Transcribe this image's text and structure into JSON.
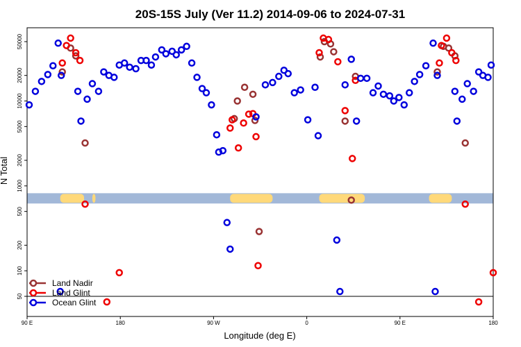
{
  "chart_data": {
    "type": "scatter",
    "title": "20S-15S July (Ver 11.2)   2014-09-06 to 2024-07-31",
    "xlabel": "Longitude (deg E)",
    "ylabel": "N Total",
    "y_scale": "log",
    "ylim": [
      40,
      75000
    ],
    "x_ticks": [
      {
        "label": "90 E",
        "lon": 90
      },
      {
        "label": "180",
        "lon": 180
      },
      {
        "label": "90 W",
        "lon": 270
      },
      {
        "label": "0",
        "lon": 360
      },
      {
        "label": "90 E",
        "lon": 450
      },
      {
        "label": "180",
        "lon": 540
      }
    ],
    "xlim": [
      90,
      540
    ],
    "y_ticks": [
      50,
      100,
      200,
      500,
      1000,
      2000,
      5000,
      10000,
      20000,
      50000
    ],
    "reference_line_y": 50,
    "land_ocean_strip": {
      "ocean_color": "#a2b8d8",
      "land_color": "#ffd97a",
      "land_ranges_lon": [
        [
          122,
          145
        ],
        [
          153,
          156
        ],
        [
          286,
          327
        ],
        [
          372,
          416
        ],
        [
          478,
          500
        ]
      ]
    },
    "legend": {
      "position": "bottom-left",
      "entries": [
        {
          "label": "Land Nadir",
          "color": "#993333"
        },
        {
          "label": "Land Glint",
          "color": "#ee0000"
        },
        {
          "label": "Ocean Glint",
          "color": "#0000dd"
        }
      ]
    },
    "series": [
      {
        "name": "Land Nadir",
        "color": "#993333",
        "points": [
          [
            124,
            22000
          ],
          [
            132,
            42000
          ],
          [
            137,
            34000
          ],
          [
            146,
            3200
          ],
          [
            290,
            6200
          ],
          [
            293,
            10000
          ],
          [
            300,
            14500
          ],
          [
            308,
            12000
          ],
          [
            310,
            5900
          ],
          [
            314,
            290
          ],
          [
            373,
            33000
          ],
          [
            377,
            50000
          ],
          [
            383,
            47000
          ],
          [
            386,
            38000
          ],
          [
            397,
            5800
          ],
          [
            403,
            680
          ],
          [
            407,
            19500
          ],
          [
            486,
            22000
          ],
          [
            492,
            44000
          ],
          [
            497,
            42000
          ],
          [
            503,
            34000
          ],
          [
            513,
            3200
          ]
        ]
      },
      {
        "name": "Land Glint",
        "color": "#ee0000",
        "points": [
          [
            124,
            28000
          ],
          [
            128,
            45000
          ],
          [
            132,
            55000
          ],
          [
            137,
            37000
          ],
          [
            141,
            30000
          ],
          [
            146,
            610
          ],
          [
            179,
            95
          ],
          [
            167,
            43
          ],
          [
            286,
            4800
          ],
          [
            288,
            6000
          ],
          [
            294,
            2800
          ],
          [
            299,
            5500
          ],
          [
            304,
            7000
          ],
          [
            308,
            7100
          ],
          [
            311,
            3800
          ],
          [
            313,
            115
          ],
          [
            372,
            37000
          ],
          [
            376,
            55000
          ],
          [
            381,
            53000
          ],
          [
            390,
            29000
          ],
          [
            397,
            7700
          ],
          [
            404,
            2100
          ],
          [
            407,
            17500
          ],
          [
            488,
            28000
          ],
          [
            490,
            45000
          ],
          [
            495,
            55000
          ],
          [
            500,
            37000
          ],
          [
            504,
            30000
          ],
          [
            513,
            610
          ],
          [
            540,
            95
          ],
          [
            526,
            43
          ]
        ]
      },
      {
        "name": "Ocean Glint",
        "color": "#0000dd",
        "points": [
          [
            92,
            9000
          ],
          [
            98,
            13000
          ],
          [
            104,
            17000
          ],
          [
            110,
            20500
          ],
          [
            115,
            26000
          ],
          [
            120,
            48000
          ],
          [
            123,
            20000
          ],
          [
            139,
            13000
          ],
          [
            142,
            5800
          ],
          [
            148,
            10500
          ],
          [
            153,
            16000
          ],
          [
            159,
            13000
          ],
          [
            164,
            22000
          ],
          [
            169,
            20000
          ],
          [
            174,
            19000
          ],
          [
            179,
            26500
          ],
          [
            184,
            28000
          ],
          [
            189,
            25000
          ],
          [
            195,
            24000
          ],
          [
            200,
            30000
          ],
          [
            205,
            30000
          ],
          [
            210,
            26500
          ],
          [
            214,
            33000
          ],
          [
            220,
            40000
          ],
          [
            224,
            36000
          ],
          [
            230,
            38500
          ],
          [
            234,
            35000
          ],
          [
            239,
            40000
          ],
          [
            244,
            44000
          ],
          [
            249,
            28000
          ],
          [
            254,
            19000
          ],
          [
            259,
            14000
          ],
          [
            263,
            12500
          ],
          [
            268,
            9000
          ],
          [
            273,
            4000
          ],
          [
            275,
            2500
          ],
          [
            279,
            2600
          ],
          [
            283,
            370
          ],
          [
            286,
            180
          ],
          [
            311,
            6500
          ],
          [
            320,
            15500
          ],
          [
            327,
            16500
          ],
          [
            333,
            19500
          ],
          [
            338,
            23000
          ],
          [
            342,
            21000
          ],
          [
            348,
            12500
          ],
          [
            354,
            13500
          ],
          [
            361,
            6000
          ],
          [
            368,
            14500
          ],
          [
            371,
            3900
          ],
          [
            389,
            230
          ],
          [
            392,
            57
          ],
          [
            397,
            15500
          ],
          [
            403,
            31000
          ],
          [
            408,
            5800
          ],
          [
            412,
            18500
          ],
          [
            418,
            18500
          ],
          [
            424,
            12500
          ],
          [
            429,
            15000
          ],
          [
            434,
            12000
          ],
          [
            440,
            11500
          ],
          [
            444,
            10000
          ],
          [
            449,
            11000
          ],
          [
            454,
            9000
          ],
          [
            459,
            12500
          ],
          [
            464,
            17000
          ],
          [
            469,
            20500
          ],
          [
            475,
            26000
          ],
          [
            482,
            48000
          ],
          [
            486,
            20000
          ],
          [
            503,
            13000
          ],
          [
            505,
            5800
          ],
          [
            510,
            10500
          ],
          [
            515,
            16000
          ],
          [
            521,
            13000
          ],
          [
            526,
            22000
          ],
          [
            530,
            20000
          ],
          [
            535,
            19000
          ],
          [
            538,
            26500
          ],
          [
            122,
            57
          ],
          [
            484,
            57
          ]
        ]
      }
    ]
  }
}
